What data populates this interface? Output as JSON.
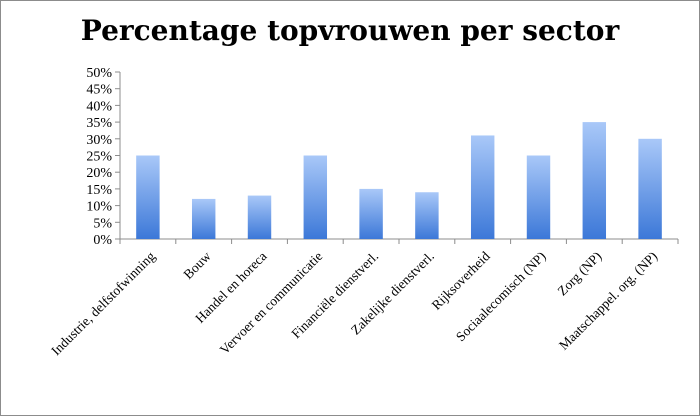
{
  "chart_data": {
    "type": "bar",
    "title": "Percentage topvrouwen per sector",
    "xlabel": "",
    "ylabel": "",
    "ylim": [
      0,
      50
    ],
    "ytick_values": [
      0,
      5,
      10,
      15,
      20,
      25,
      30,
      35,
      40,
      45,
      50
    ],
    "ytick_labels": [
      "0%",
      "5%",
      "10%",
      "15%",
      "20%",
      "25%",
      "30%",
      "35%",
      "40%",
      "45%",
      "50%"
    ],
    "grid": false,
    "legend": "none",
    "categories": [
      "Industrie, delfstofwinning",
      "Bouw",
      "Handel en horeca",
      "Vervoer en communicatie",
      "Financiële dienstverl.",
      "Zakelijke dienstverl.",
      "Rijksoverheid",
      "Sociaalecomisch (NP)",
      "Zorg (NP)",
      "Maatschappel. org. (NP)"
    ],
    "values": [
      25,
      12,
      13,
      25,
      15,
      14,
      31,
      25,
      35,
      30
    ],
    "colors": {
      "bar_top": "#a9c8f8",
      "bar_bottom": "#3c78d8",
      "axis": "#8c8c8c"
    }
  }
}
